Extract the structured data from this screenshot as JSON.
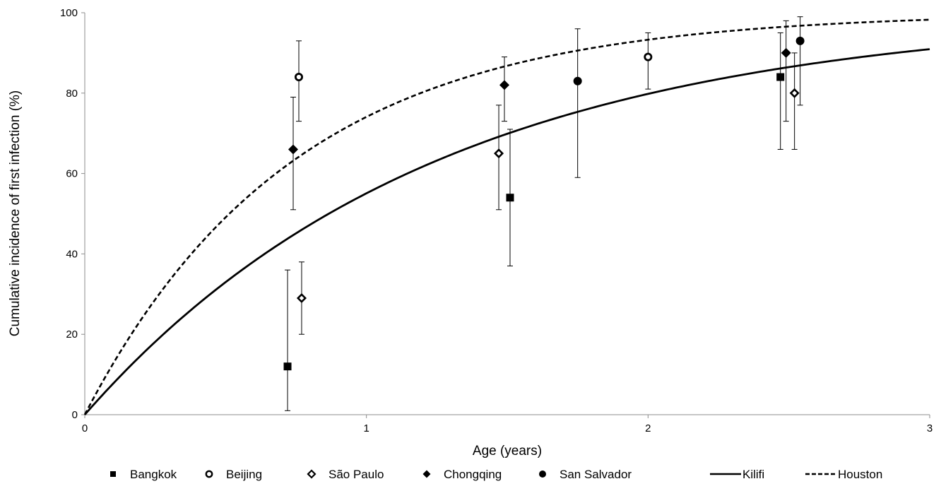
{
  "chart_data": {
    "type": "scatter",
    "title": "",
    "xlabel": "Age (years)",
    "ylabel": "Cumulative incidence of first infection (%)",
    "xlim": [
      0,
      3
    ],
    "ylim": [
      0,
      100
    ],
    "x_ticks": [
      "0",
      "1",
      "2",
      "3"
    ],
    "y_ticks": [
      "0",
      "20",
      "40",
      "60",
      "80",
      "100"
    ],
    "grid": false,
    "legend_position": "bottom",
    "series": [
      {
        "name": "Bangkok",
        "marker": "square-filled",
        "points": [
          {
            "x": 0.72,
            "y": 12,
            "low": 1,
            "high": 36
          },
          {
            "x": 1.51,
            "y": 54,
            "low": 37,
            "high": 71
          },
          {
            "x": 2.47,
            "y": 84,
            "low": 66,
            "high": 95
          }
        ]
      },
      {
        "name": "Beijing",
        "marker": "circle-open",
        "points": [
          {
            "x": 0.76,
            "y": 84,
            "low": 73,
            "high": 93
          },
          {
            "x": 2.0,
            "y": 89,
            "low": 81,
            "high": 95
          }
        ]
      },
      {
        "name": "São Paulo",
        "marker": "diamond-open",
        "points": [
          {
            "x": 0.77,
            "y": 29,
            "low": 20,
            "high": 38
          },
          {
            "x": 1.47,
            "y": 65,
            "low": 51,
            "high": 77
          },
          {
            "x": 2.52,
            "y": 80,
            "low": 66,
            "high": 90
          }
        ]
      },
      {
        "name": "Chongqing",
        "marker": "diamond-filled",
        "points": [
          {
            "x": 0.74,
            "y": 66,
            "low": 51,
            "high": 79
          },
          {
            "x": 1.49,
            "y": 82,
            "low": 73,
            "high": 89
          },
          {
            "x": 2.49,
            "y": 90,
            "low": 73,
            "high": 98
          }
        ]
      },
      {
        "name": "San Salvador",
        "marker": "circle-filled",
        "points": [
          {
            "x": 1.75,
            "y": 83,
            "low": 59,
            "high": 96
          },
          {
            "x": 2.54,
            "y": 93,
            "low": 77,
            "high": 99
          }
        ]
      }
    ],
    "curves": [
      {
        "name": "Kilifi",
        "style": "solid",
        "model": "100*(1-exp(-k*x))",
        "k": 0.8
      },
      {
        "name": "Houston",
        "style": "dashed",
        "model": "100*(1-exp(-k*x))",
        "k": 1.35
      }
    ]
  }
}
